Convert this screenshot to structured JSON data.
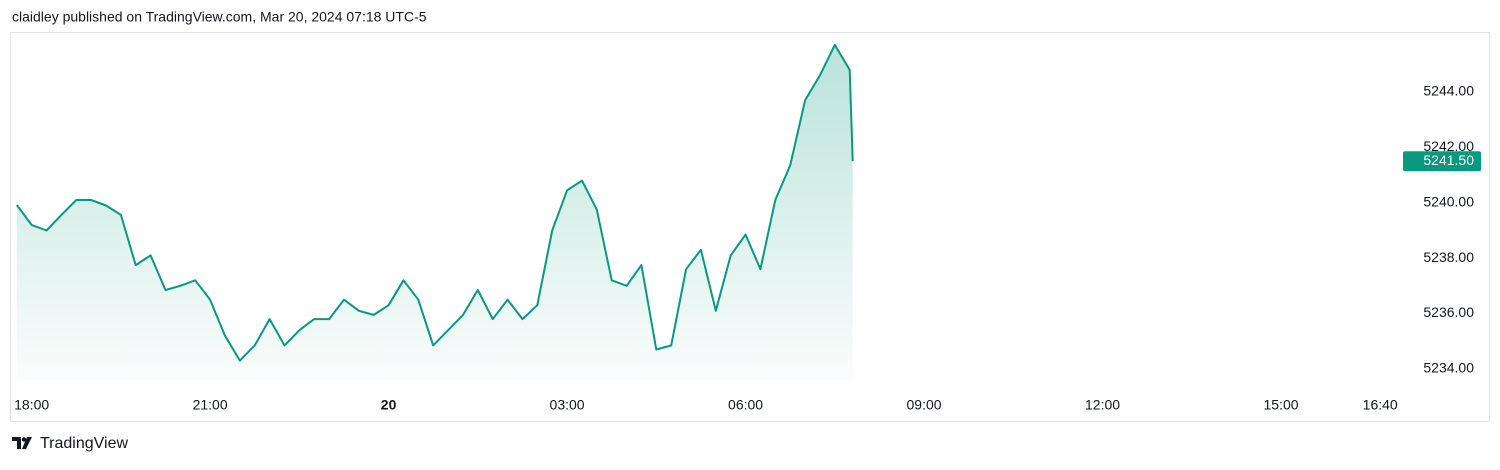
{
  "header": "claidley published on TradingView.com, Mar 20, 2024 07:18 UTC-5",
  "brand": "TradingView",
  "chart_data": {
    "type": "area",
    "x": [
      17.75,
      18,
      18.25,
      18.5,
      18.75,
      19,
      19.25,
      19.5,
      19.75,
      20,
      20.25,
      20.5,
      20.75,
      21,
      21.25,
      21.5,
      21.75,
      22,
      22.25,
      22.5,
      22.75,
      23,
      23.25,
      23.5,
      23.75,
      24,
      24.25,
      24.5,
      24.75,
      25,
      25.25,
      25.5,
      25.75,
      26,
      26.25,
      26.5,
      26.75,
      27,
      27.25,
      27.5,
      27.75,
      28,
      28.25,
      28.5,
      28.75,
      29,
      29.25,
      29.5,
      29.75,
      30,
      30.25,
      30.5,
      30.75,
      31,
      31.25,
      31.5,
      31.75,
      31.8
    ],
    "values": [
      5239.92,
      5239.2,
      5239.0,
      5239.56,
      5240.1,
      5240.1,
      5239.9,
      5239.56,
      5237.75,
      5238.1,
      5236.85,
      5237.0,
      5237.2,
      5236.5,
      5235.2,
      5234.3,
      5234.85,
      5235.8,
      5234.85,
      5235.4,
      5235.8,
      5235.8,
      5236.5,
      5236.1,
      5235.95,
      5236.3,
      5237.2,
      5236.5,
      5234.85,
      5235.4,
      5235.95,
      5236.85,
      5235.8,
      5236.5,
      5235.8,
      5236.3,
      5239.0,
      5240.45,
      5240.8,
      5239.75,
      5237.2,
      5237.0,
      5237.75,
      5234.7,
      5234.85,
      5237.6,
      5238.3,
      5236.1,
      5238.1,
      5238.85,
      5237.6,
      5240.1,
      5241.35,
      5243.7,
      5244.6,
      5245.7,
      5244.8,
      5241.5
    ],
    "value_labels": [
      null,
      null,
      null,
      null,
      null,
      null,
      null,
      null,
      null,
      null,
      null,
      null,
      null,
      null,
      null,
      null,
      null,
      null,
      null,
      null,
      null,
      null,
      null,
      null,
      null,
      null,
      null,
      null,
      null,
      null,
      null,
      null,
      null,
      null,
      null,
      null,
      null,
      null,
      null,
      null,
      null,
      null,
      null,
      null,
      null,
      null,
      null,
      null,
      null,
      null,
      null,
      null,
      null,
      null,
      null,
      null,
      null,
      "5241.50"
    ],
    "color": "#089981",
    "xlim": [
      17.67,
      41.0
    ],
    "xticks": [
      {
        "value": 18,
        "label": "18:00"
      },
      {
        "value": 21,
        "label": "21:00"
      },
      {
        "value": 24,
        "label": "20"
      },
      {
        "value": 27,
        "label": "03:00"
      },
      {
        "value": 30,
        "label": "06:00"
      },
      {
        "value": 33,
        "label": "09:00"
      },
      {
        "value": 36,
        "label": "12:00"
      },
      {
        "value": 39,
        "label": "15:00"
      },
      {
        "value": 40.667,
        "label": "16:40"
      }
    ],
    "ylim": [
      5233.6,
      5246.13
    ],
    "yticks": [
      {
        "value": 5234,
        "label": "5234.00"
      },
      {
        "value": 5236,
        "label": "5236.00"
      },
      {
        "value": 5238,
        "label": "5238.00"
      },
      {
        "value": 5240,
        "label": "5240.00"
      },
      {
        "value": 5242,
        "label": "5242.00"
      },
      {
        "value": 5244,
        "label": "5244.00"
      }
    ],
    "grid": false
  }
}
